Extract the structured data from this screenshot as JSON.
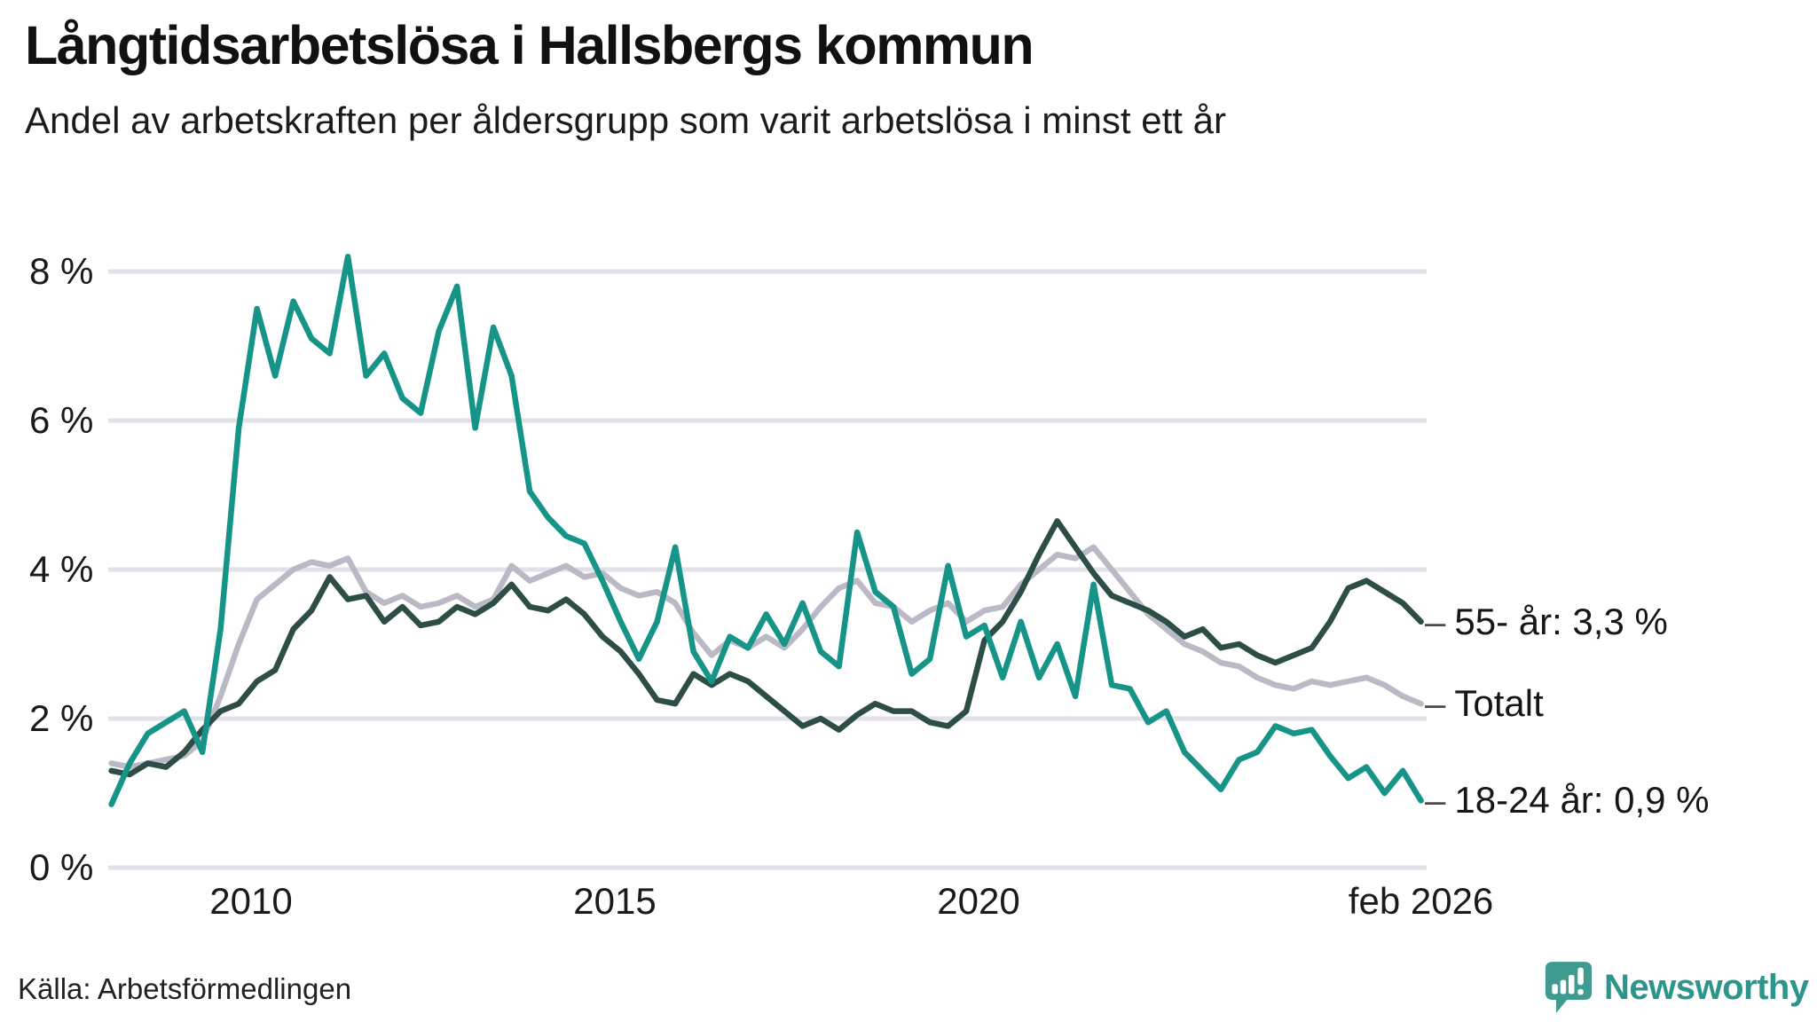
{
  "header": {
    "title": "Långtidsarbetslösa i Hallsbergs kommun",
    "subtitle": "Andel av arbetskraften per åldersgrupp som varit arbetslösa i minst ett år"
  },
  "chart_data": {
    "type": "line",
    "title": "Långtidsarbetslösa i Hallsbergs kommun",
    "subtitle": "Andel av arbetskraften per åldersgrupp som varit arbetslösa i minst ett år",
    "unit": "%",
    "x_start_year": 2008.08,
    "x_step_years": 0.25,
    "ylim": [
      0,
      8.6
    ],
    "grid": true,
    "legend_position": "end-of-line",
    "leader_dash": "–",
    "yticks": [
      {
        "value": 8,
        "label": "8 %"
      },
      {
        "value": 6,
        "label": "6 %"
      },
      {
        "value": 4,
        "label": "4 %"
      },
      {
        "value": 2,
        "label": "2 %"
      },
      {
        "value": 0,
        "label": "0 %"
      }
    ],
    "xticks": [
      {
        "t": 2010,
        "label": "2010"
      },
      {
        "t": 2015,
        "label": "2015"
      },
      {
        "t": 2020,
        "label": "2020"
      },
      {
        "t": 2026.08,
        "label": "feb 2026"
      }
    ],
    "series": [
      {
        "name": "Totalt",
        "color": "#bcb9c7",
        "end_label": "Totalt",
        "values": [
          1.4,
          1.35,
          1.4,
          1.45,
          1.5,
          1.7,
          2.3,
          3.0,
          3.6,
          3.8,
          4.0,
          4.1,
          4.05,
          4.15,
          3.7,
          3.55,
          3.65,
          3.5,
          3.55,
          3.65,
          3.5,
          3.6,
          4.05,
          3.85,
          3.95,
          4.05,
          3.9,
          3.95,
          3.75,
          3.65,
          3.7,
          3.55,
          3.15,
          2.85,
          3.05,
          2.95,
          3.1,
          2.95,
          3.2,
          3.5,
          3.75,
          3.85,
          3.55,
          3.5,
          3.3,
          3.45,
          3.55,
          3.3,
          3.45,
          3.5,
          3.8,
          4.0,
          4.2,
          4.15,
          4.3,
          4.0,
          3.7,
          3.4,
          3.2,
          3.0,
          2.9,
          2.75,
          2.7,
          2.55,
          2.45,
          2.4,
          2.5,
          2.45,
          2.5,
          2.55,
          2.45,
          2.3,
          2.2
        ]
      },
      {
        "name": "55- år",
        "color": "#2d4e47",
        "end_label": "55- år: 3,3 %",
        "last_value_label": "3,3 %",
        "values": [
          1.3,
          1.25,
          1.4,
          1.35,
          1.55,
          1.85,
          2.1,
          2.2,
          2.5,
          2.65,
          3.2,
          3.45,
          3.9,
          3.6,
          3.65,
          3.3,
          3.5,
          3.25,
          3.3,
          3.5,
          3.4,
          3.55,
          3.8,
          3.5,
          3.45,
          3.6,
          3.4,
          3.1,
          2.9,
          2.6,
          2.25,
          2.2,
          2.6,
          2.45,
          2.6,
          2.5,
          2.3,
          2.1,
          1.9,
          2.0,
          1.85,
          2.05,
          2.2,
          2.1,
          2.1,
          1.95,
          1.9,
          2.1,
          3.05,
          3.3,
          3.7,
          4.2,
          4.65,
          4.3,
          3.95,
          3.65,
          3.55,
          3.45,
          3.3,
          3.1,
          3.2,
          2.95,
          3.0,
          2.85,
          2.75,
          2.85,
          2.95,
          3.3,
          3.75,
          3.85,
          3.7,
          3.55,
          3.3
        ]
      },
      {
        "name": "18-24 år",
        "color": "#169488",
        "end_label": "18-24 år: 0,9 %",
        "last_value_label": "0,9 %",
        "values": [
          0.85,
          1.4,
          1.8,
          1.95,
          2.1,
          1.55,
          3.2,
          5.9,
          7.5,
          6.6,
          7.6,
          7.1,
          6.9,
          8.2,
          6.6,
          6.9,
          6.3,
          6.1,
          7.2,
          7.8,
          5.9,
          7.25,
          6.6,
          5.05,
          4.7,
          4.45,
          4.35,
          3.85,
          3.3,
          2.8,
          3.3,
          4.3,
          2.9,
          2.5,
          3.1,
          2.95,
          3.4,
          3.0,
          3.55,
          2.9,
          2.7,
          4.5,
          3.7,
          3.5,
          2.6,
          2.8,
          4.05,
          3.1,
          3.25,
          2.55,
          3.3,
          2.55,
          3.0,
          2.3,
          3.8,
          2.45,
          2.4,
          1.95,
          2.1,
          1.55,
          1.3,
          1.05,
          1.45,
          1.55,
          1.9,
          1.8,
          1.85,
          1.5,
          1.2,
          1.35,
          1.0,
          1.3,
          0.9
        ]
      }
    ]
  },
  "footer": {
    "source": "Källa: Arbetsförmedlingen",
    "brand": "Newsworthy"
  }
}
